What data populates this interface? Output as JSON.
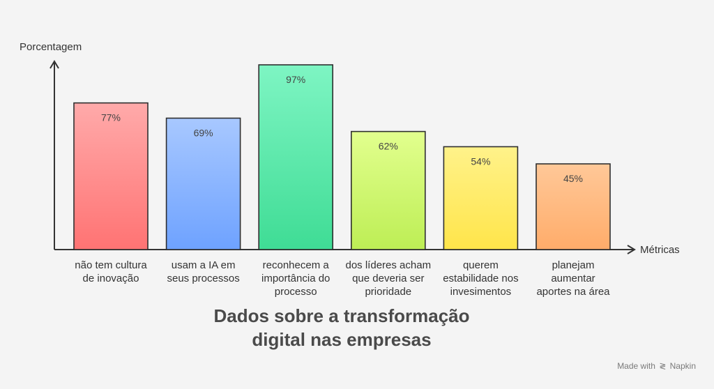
{
  "chart_data": {
    "type": "bar",
    "ylabel": "Porcentagem",
    "xlabel": "Métricas",
    "ylim": [
      0,
      100
    ],
    "grid": false,
    "categories": [
      [
        "não tem cultura",
        "de inovação"
      ],
      [
        "usam a IA em",
        "seus processos"
      ],
      [
        "reconhecem a",
        "importância do",
        "processo"
      ],
      [
        "dos líderes acham",
        "que deveria ser",
        "prioridade"
      ],
      [
        "querem",
        "estabilidade nos",
        "invesimentos"
      ],
      [
        "planejam",
        "aumentar",
        "aportes na área"
      ]
    ],
    "values": [
      77,
      69,
      97,
      62,
      54,
      45
    ],
    "value_labels": [
      "77%",
      "69%",
      "97%",
      "62%",
      "54%",
      "45%"
    ],
    "bar_colors": [
      [
        "#ffaaaa",
        "#ff7373"
      ],
      [
        "#a8c8ff",
        "#6ea2ff"
      ],
      [
        "#7ef5c3",
        "#3fdc95"
      ],
      [
        "#e2ff8e",
        "#bdee55"
      ],
      [
        "#fff28a",
        "#ffe54a"
      ],
      [
        "#ffc898",
        "#ffac6a"
      ]
    ],
    "title_lines": [
      "Dados sobre a transformação",
      "digital nas empresas"
    ]
  },
  "watermark": {
    "prefix": "Made with",
    "icon": "napkin-icon",
    "brand": "Napkin"
  }
}
